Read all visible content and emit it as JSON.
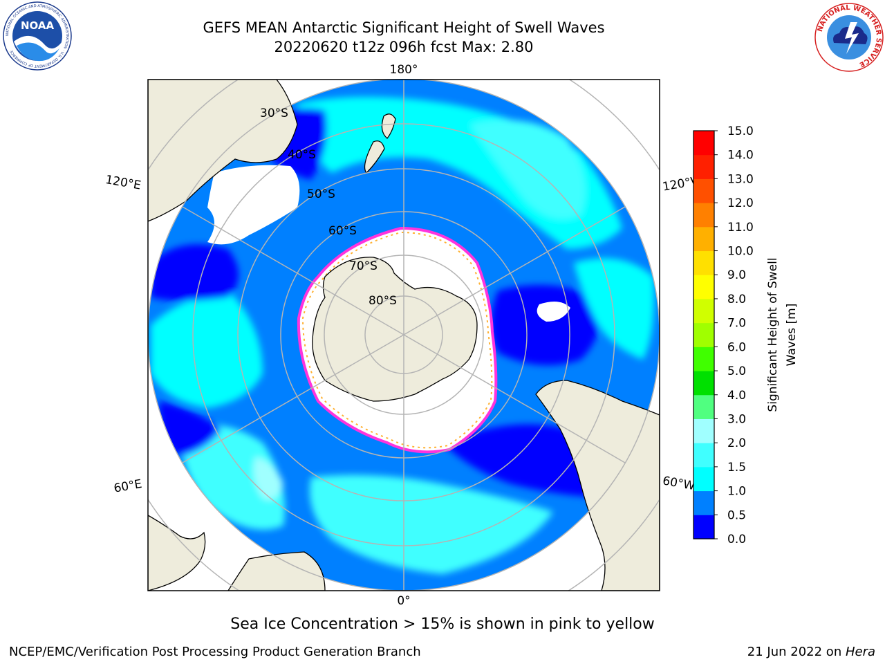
{
  "header": {
    "title_line1": "GEFS MEAN Antarctic Significant Height of Swell Waves",
    "title_line2": "20220620 t12z 096h fcst   Max: 2.80"
  },
  "logos": {
    "left": {
      "name": "noaa-logo",
      "text": "NOAA",
      "ring_text": "NATIONAL OCEANIC AND ATMOSPHERIC ADMINISTRATION · U.S. DEPARTMENT OF COMMERCE"
    },
    "right": {
      "name": "nws-logo",
      "ring_text": "NATIONAL WEATHER SERVICE"
    }
  },
  "map": {
    "projection": "south-polar-stereographic",
    "lon_labels": {
      "top": "180°",
      "bottom": "0°",
      "left_upper": "120°E",
      "left_lower": "60°E",
      "right_upper": "120°W",
      "right_lower": "60°W"
    },
    "lat_labels": [
      "30°S",
      "40°S",
      "50°S",
      "60°S",
      "70°S",
      "80°S"
    ],
    "colors": {
      "land": "#eeecdc",
      "ice": "#ffffff",
      "ice_edge": "#ff33dd",
      "ice_speckle": "#ffb030",
      "grid": "#b4b4b4"
    }
  },
  "colorbar": {
    "label_line1": "Significant Height of Swell",
    "label_line2": "Waves [m]",
    "ticks": [
      "0.0",
      "0.5",
      "1.0",
      "1.5",
      "2.0",
      "3.0",
      "4.0",
      "5.0",
      "6.0",
      "7.0",
      "8.0",
      "9.0",
      "10.0",
      "11.0",
      "12.0",
      "13.0",
      "14.0",
      "15.0"
    ],
    "colors": [
      "#0000ff",
      "#0080ff",
      "#00ffff",
      "#40ffff",
      "#a0ffff",
      "#50ff80",
      "#00e000",
      "#40ff00",
      "#a0ff00",
      "#d0ff00",
      "#ffff00",
      "#ffe000",
      "#ffb000",
      "#ff8000",
      "#ff5000",
      "#ff2000",
      "#ff0000"
    ]
  },
  "footer": {
    "note": "Sea Ice Concentration > 15% is shown in pink to yellow",
    "credit_left": "NCEP/EMC/Verification Post Processing Product Generation Branch",
    "credit_date": "21 Jun 2022 on ",
    "credit_machine": "Hera"
  }
}
